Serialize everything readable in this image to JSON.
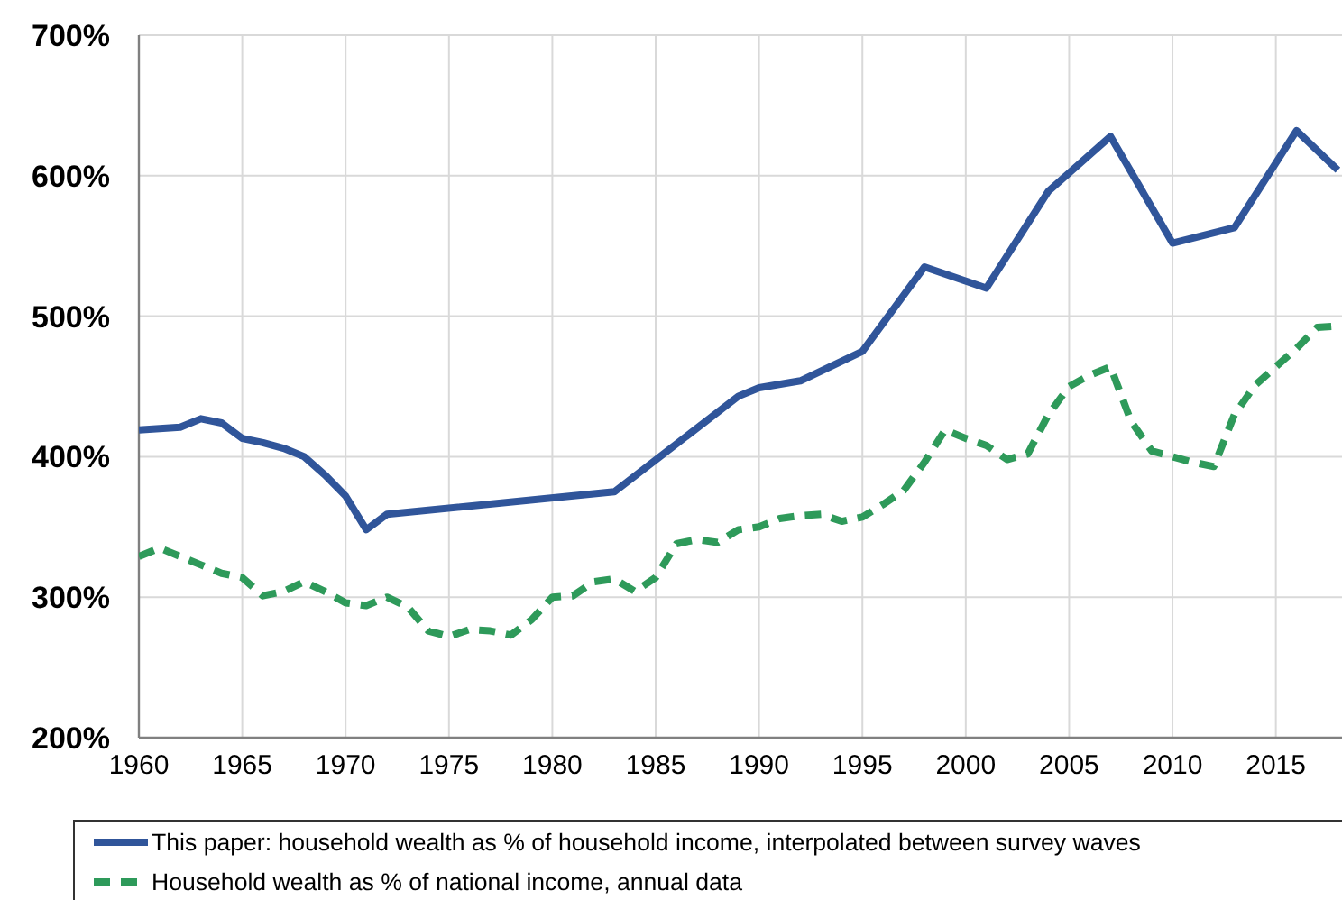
{
  "chart_data": {
    "type": "line",
    "x": [
      1960,
      1961,
      1962,
      1963,
      1964,
      1965,
      1966,
      1967,
      1968,
      1969,
      1970,
      1971,
      1972,
      1973,
      1974,
      1975,
      1976,
      1977,
      1978,
      1979,
      1980,
      1981,
      1982,
      1983,
      1984,
      1985,
      1986,
      1987,
      1988,
      1989,
      1990,
      1991,
      1992,
      1993,
      1994,
      1995,
      1996,
      1997,
      1998,
      1999,
      2000,
      2001,
      2002,
      2003,
      2004,
      2005,
      2006,
      2007,
      2008,
      2009,
      2010,
      2011,
      2012,
      2013,
      2014,
      2015,
      2016,
      2017,
      2018
    ],
    "series": [
      {
        "name": "This paper: household wealth as % of household income, interpolated between survey waves",
        "color": "#30559a",
        "line_style": "solid",
        "x": [
          1960,
          1961,
          1962,
          1963,
          1964,
          1965,
          1966,
          1967,
          1968,
          1969,
          1970,
          1971,
          1972,
          1983,
          1989,
          1990,
          1992,
          1995,
          1998,
          2001,
          2004,
          2007,
          2010,
          2013,
          2016,
          2018
        ],
        "values": [
          419,
          420,
          421,
          427,
          424,
          413,
          410,
          406,
          400,
          387,
          372,
          348,
          359,
          375,
          443,
          449,
          454,
          475,
          535,
          520,
          589,
          628,
          552,
          563,
          632,
          604
        ]
      },
      {
        "name": "Household wealth as % of national income, annual data",
        "color": "#2e9a5a",
        "line_style": "dashed",
        "values": [
          329,
          335,
          329,
          323,
          317,
          314,
          301,
          304,
          311,
          304,
          296,
          294,
          300,
          293,
          276,
          272,
          277,
          276,
          273,
          284,
          300,
          301,
          311,
          313,
          304,
          314,
          338,
          341,
          339,
          348,
          350,
          356,
          358,
          359,
          354,
          357,
          366,
          376,
          396,
          419,
          413,
          408,
          398,
          402,
          430,
          450,
          458,
          464,
          425,
          404,
          400,
          396,
          393,
          430,
          451,
          464,
          477,
          492,
          493
        ]
      }
    ],
    "xlim": [
      1960,
      2018.2
    ],
    "xticks": [
      1960,
      1965,
      1970,
      1975,
      1980,
      1985,
      1990,
      1995,
      2000,
      2005,
      2010,
      2015
    ],
    "ylim": [
      200,
      700
    ],
    "yticks": [
      {
        "value": 200,
        "label": "200%"
      },
      {
        "value": 300,
        "label": "300%"
      },
      {
        "value": 400,
        "label": "400%"
      },
      {
        "value": 500,
        "label": "500%"
      },
      {
        "value": 600,
        "label": "600%"
      },
      {
        "value": 700,
        "label": "700%"
      }
    ],
    "grid": true,
    "legend": "bottom",
    "marker": "none"
  }
}
